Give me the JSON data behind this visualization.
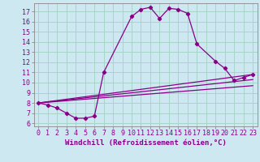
{
  "xlabel": "Windchill (Refroidissement éolien,°C)",
  "bg_color": "#cde8f0",
  "grid_color": "#a8d4c8",
  "line_color": "#880088",
  "xlim": [
    -0.5,
    23.5
  ],
  "ylim": [
    5.7,
    17.8
  ],
  "xticks": [
    0,
    1,
    2,
    3,
    4,
    5,
    6,
    7,
    8,
    9,
    10,
    11,
    12,
    13,
    14,
    15,
    16,
    17,
    18,
    19,
    20,
    21,
    22,
    23
  ],
  "yticks": [
    6,
    7,
    8,
    9,
    10,
    11,
    12,
    13,
    14,
    15,
    16,
    17
  ],
  "curve1_x": [
    0,
    1,
    2,
    3,
    4,
    5,
    6,
    7,
    10,
    11,
    12,
    13,
    14,
    15,
    16,
    17,
    19,
    20,
    21,
    22,
    23
  ],
  "curve1_y": [
    8.0,
    7.8,
    7.5,
    7.0,
    6.5,
    6.5,
    6.7,
    11.0,
    16.5,
    17.2,
    17.4,
    16.3,
    17.3,
    17.2,
    16.8,
    13.8,
    12.1,
    11.4,
    10.2,
    10.5,
    10.8
  ],
  "line2_x": [
    0,
    23
  ],
  "line2_y": [
    8.0,
    10.8
  ],
  "line3_x": [
    0,
    23
  ],
  "line3_y": [
    8.0,
    10.3
  ],
  "line4_x": [
    0,
    23
  ],
  "line4_y": [
    8.0,
    9.7
  ],
  "xlabel_fontsize": 6.5,
  "tick_fontsize": 6.0
}
